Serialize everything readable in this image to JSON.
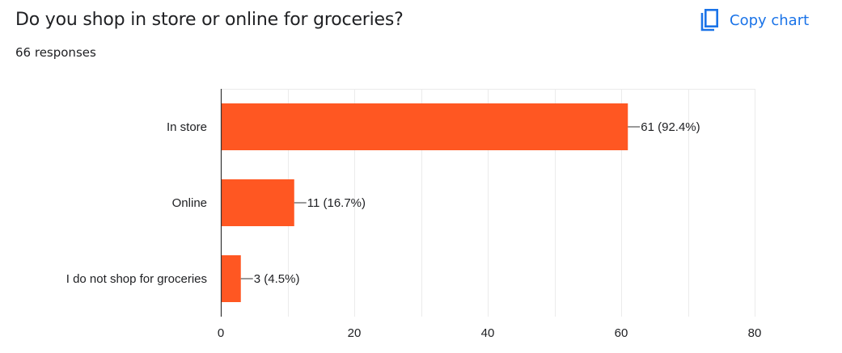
{
  "header": {
    "title": "Do you shop in store or online for groceries?",
    "responses_label": "66 responses",
    "copy_label": "Copy chart",
    "copy_icon": "copy-icon"
  },
  "colors": {
    "bar": "#ff5722",
    "accent": "#1a73e8",
    "grid": "#ebebeb",
    "axis": "#333333",
    "text": "#202124"
  },
  "chart_data": {
    "type": "bar",
    "orientation": "horizontal",
    "categories": [
      "In store",
      "Online",
      "I do not shop for groceries"
    ],
    "values": [
      61,
      11,
      3
    ],
    "percentages": [
      "92.4%",
      "16.7%",
      "4.5%"
    ],
    "data_labels": [
      "61 (92.4%)",
      "11 (16.7%)",
      "3 (4.5%)"
    ],
    "xticks": [
      0,
      20,
      40,
      60,
      80
    ],
    "xlim": [
      0,
      80
    ],
    "grid": true,
    "xlabel": "",
    "ylabel": ""
  }
}
